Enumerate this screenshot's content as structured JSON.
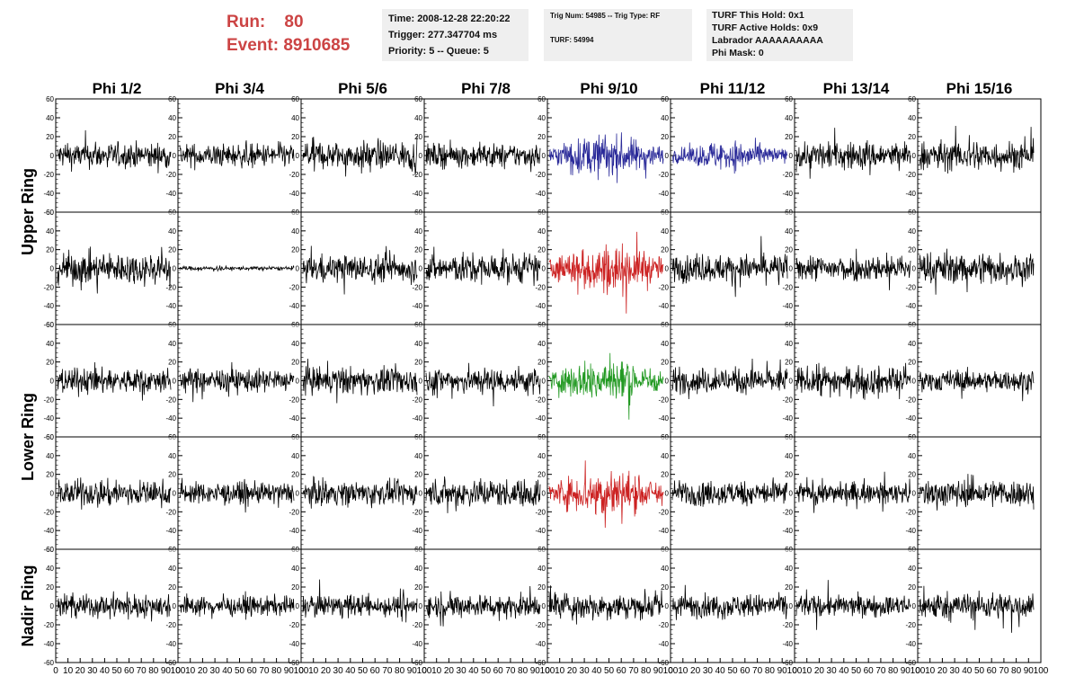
{
  "header": {
    "run_label": "Run:    80",
    "event_label": "Event: 8910685",
    "time_line": "Time: 2008-12-28 22:20:22",
    "trigger_line": "Trigger: 277.347704 ms",
    "priority_line": "Priority: 5 -- Queue: 5",
    "trig_num_line": "Trig Num: 54985 -- Trig Type: RF",
    "turf_line": "TURF: 54994",
    "turf_hold_line": "TURF This Hold: 0x1",
    "turf_active_line": "TURF Active Holds: 0x9",
    "labrador_line": "Labrador AAAAAAAAAA",
    "phi_mask_line": "Phi Mask: 0"
  },
  "colors": {
    "black": "#000000",
    "blue": "#2a2a99",
    "red": "#cc2222",
    "green": "#229922"
  },
  "chart_data": {
    "type": "line",
    "columns": [
      "Phi 1/2",
      "Phi 3/4",
      "Phi 5/6",
      "Phi 7/8",
      "Phi 9/10",
      "Phi 11/12",
      "Phi 13/14",
      "Phi 15/16"
    ],
    "ring_labels": [
      "Upper Ring",
      "Lower Ring",
      "Nadir Ring"
    ],
    "ylim": [
      -60,
      60
    ],
    "xlim": [
      0,
      100
    ],
    "y_ticks": [
      "60",
      "40",
      "20",
      "0",
      "-20",
      "-40",
      "-60"
    ],
    "x_ticks": [
      "0",
      "10",
      "20",
      "30",
      "40",
      "50",
      "60",
      "70",
      "80",
      "90",
      "100"
    ],
    "panels": [
      [
        {
          "color": "black",
          "amp": 12
        },
        {
          "color": "black",
          "amp": 11
        },
        {
          "color": "black",
          "amp": 13
        },
        {
          "color": "black",
          "amp": 11
        },
        {
          "color": "blue",
          "amp": 17
        },
        {
          "color": "blue",
          "amp": 12
        },
        {
          "color": "black",
          "amp": 13
        },
        {
          "color": "black",
          "amp": 14
        }
      ],
      [
        {
          "color": "black",
          "amp": 15
        },
        {
          "color": "black",
          "amp": 2
        },
        {
          "color": "black",
          "amp": 13
        },
        {
          "color": "black",
          "amp": 14
        },
        {
          "color": "red",
          "amp": 20
        },
        {
          "color": "black",
          "amp": 13
        },
        {
          "color": "black",
          "amp": 12
        },
        {
          "color": "black",
          "amp": 15
        }
      ],
      [
        {
          "color": "black",
          "amp": 12
        },
        {
          "color": "black",
          "amp": 11
        },
        {
          "color": "black",
          "amp": 13
        },
        {
          "color": "black",
          "amp": 13
        },
        {
          "color": "green",
          "amp": 18
        },
        {
          "color": "black",
          "amp": 12
        },
        {
          "color": "black",
          "amp": 13
        },
        {
          "color": "black",
          "amp": 10
        }
      ],
      [
        {
          "color": "black",
          "amp": 12
        },
        {
          "color": "black",
          "amp": 10
        },
        {
          "color": "black",
          "amp": 11
        },
        {
          "color": "black",
          "amp": 13
        },
        {
          "color": "red",
          "amp": 20
        },
        {
          "color": "black",
          "amp": 12
        },
        {
          "color": "black",
          "amp": 10
        },
        {
          "color": "black",
          "amp": 13
        }
      ],
      [
        {
          "color": "black",
          "amp": 11
        },
        {
          "color": "black",
          "amp": 9
        },
        {
          "color": "black",
          "amp": 10
        },
        {
          "color": "black",
          "amp": 11
        },
        {
          "color": "black",
          "amp": 12
        },
        {
          "color": "black",
          "amp": 11
        },
        {
          "color": "black",
          "amp": 10
        },
        {
          "color": "black",
          "amp": 13
        }
      ]
    ]
  }
}
